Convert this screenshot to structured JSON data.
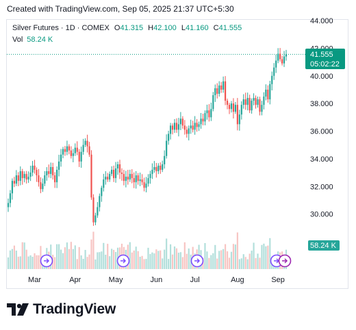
{
  "caption": "Created with TradingView.com, Sep 05, 2025 21:37 UTC+5:30",
  "legend": {
    "symbol": "Silver Futures · 1D · COMEX",
    "open_label": "O",
    "open": "41.315",
    "high_label": "H",
    "high": "42.100",
    "low_label": "L",
    "low": "41.160",
    "close_label": "C",
    "close": "41.555",
    "volume_label": "Vol",
    "volume": "58.24 K"
  },
  "price_label": {
    "value": "41.555",
    "countdown": "05:02:22"
  },
  "volume_label_badge": "58.24 K",
  "brand": "TradingView",
  "colors": {
    "up": "#26a69a",
    "down": "#ef5350",
    "up_vol": "#b2dfdb",
    "down_vol": "#f7c5c3",
    "text": "#131722",
    "label_bg": "#089981"
  },
  "chart_data": {
    "type": "candlestick",
    "title": "Silver Futures · 1D · COMEX",
    "y_ticks": [
      "30.000",
      "32.000",
      "34.000",
      "36.000",
      "38.000",
      "40.000",
      "42.000",
      "44.000"
    ],
    "x_ticks": [
      "Mar",
      "Apr",
      "May",
      "Jun",
      "Jul",
      "Aug",
      "Sep"
    ],
    "ylim": [
      28.0,
      44.0
    ],
    "grid": false,
    "last_close": 41.555,
    "closes": [
      30.8,
      31.5,
      32.4,
      32.2,
      32.8,
      32.4,
      33.1,
      32.6,
      32.9,
      32.5,
      32.7,
      33.0,
      33.5,
      33.2,
      32.8,
      32.3,
      31.8,
      32.2,
      32.8,
      33.1,
      32.9,
      33.4,
      32.8,
      32.3,
      33.2,
      33.8,
      34.3,
      34.7,
      34.5,
      34.9,
      34.6,
      34.2,
      34.4,
      34.8,
      34.5,
      33.8,
      34.5,
      35.0,
      35.3,
      34.9,
      34.3,
      31.2,
      29.4,
      29.9,
      30.5,
      31.3,
      31.9,
      32.5,
      32.7,
      32.5,
      32.9,
      33.2,
      32.6,
      33.3,
      33.6,
      33.0,
      32.9,
      32.4,
      32.7,
      32.5,
      32.9,
      32.6,
      32.3,
      32.8,
      32.4,
      32.5,
      32.3,
      31.9,
      32.2,
      32.6,
      32.9,
      33.2,
      33.4,
      33.1,
      33.5,
      33.2,
      33.6,
      34.2,
      35.3,
      35.8,
      36.4,
      36.1,
      36.6,
      36.1,
      36.5,
      36.9,
      36.4,
      36.1,
      35.8,
      36.2,
      36.4,
      36.1,
      36.6,
      36.3,
      36.5,
      36.9,
      36.7,
      37.3,
      37.5,
      37.0,
      37.6,
      38.6,
      39.1,
      38.7,
      39.3,
      39.0,
      39.6,
      38.2,
      37.9,
      37.6,
      38.0,
      37.4,
      37.9,
      36.5,
      37.2,
      37.9,
      38.3,
      37.9,
      38.4,
      37.5,
      38.2,
      38.4,
      37.9,
      38.3,
      37.4,
      37.9,
      38.5,
      39.0,
      38.3,
      39.4,
      40.0,
      40.6,
      41.1,
      41.6,
      41.2,
      40.9,
      41.4,
      41.55
    ],
    "x_tick_indices": [
      13,
      33,
      53,
      73,
      92,
      113,
      133
    ],
    "volume": {
      "last": "58.24 K"
    }
  }
}
